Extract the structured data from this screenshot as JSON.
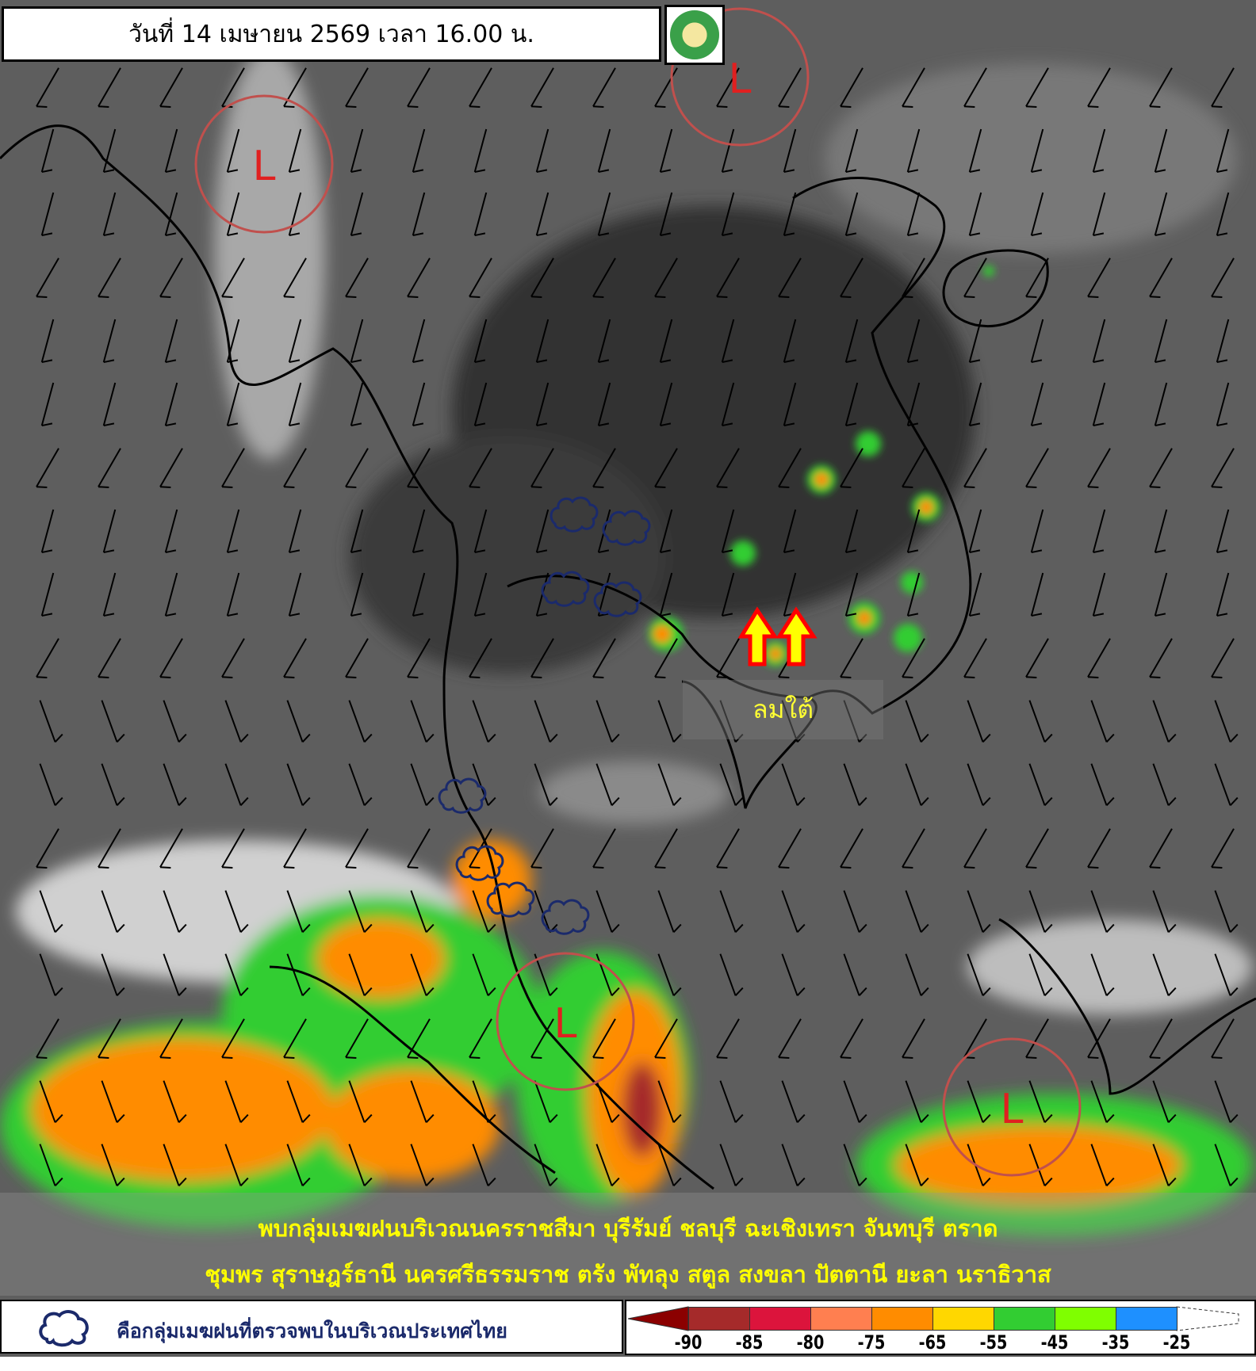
{
  "header": {
    "title": "วันที่ 14 เมษายน 2569 เวลา 16.00 น.",
    "logo_icon": "tmd-logo"
  },
  "map": {
    "low_pressure_label": "L",
    "low_pressure_color": "#c0504d",
    "low_centers_count": 4,
    "wind_label": "ลมใต้",
    "wind_arrow_color": "#ffff00",
    "wind_arrow_outline": "#ff0000",
    "cloud_outline_color": "#1b2a6b"
  },
  "summary": {
    "line1": "พบกลุ่มเมฆฝนบริเวณนครราชสีมา บุรีรัมย์ ชลบุรี ฉะเชิงเทรา จันทบุรี ตราด",
    "line2": "ชุมพร สุราษฎร์ธานี นครศรีธรรมราช ตรัง พัทลุง สตูล สงขลา ปัตตานี ยะลา นราธิวาส"
  },
  "legend": {
    "cloud_icon": "rain-cloud-outline-icon",
    "cloud_text": "คือกลุ่มเมฆฝนที่ตรวจพบในบริเวณประเทศไทย",
    "scale_colors": [
      "#8b0000",
      "#a52a2a",
      "#dc143c",
      "#ff7f50",
      "#ff8c00",
      "#ffd700",
      "#32cd32",
      "#7fff00",
      "#1e90ff",
      "#ffffff"
    ],
    "scale_ticks": [
      "-90",
      "-85",
      "-80",
      "-75",
      "-65",
      "-55",
      "-45",
      "-35",
      "-25"
    ]
  }
}
